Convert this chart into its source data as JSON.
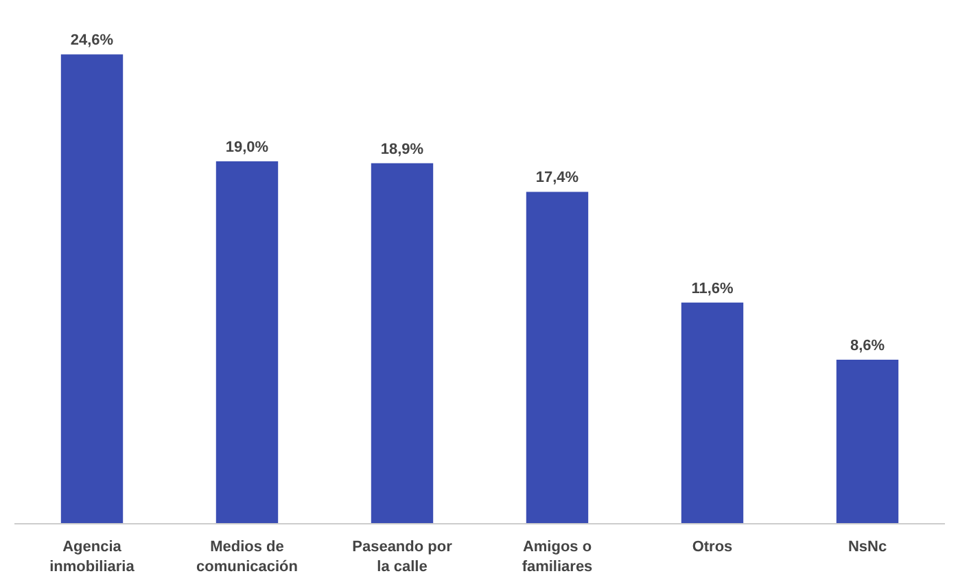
{
  "chart_data": {
    "type": "bar",
    "categories": [
      "Agencia inmobiliaria",
      "Medios de comunicación",
      "Paseando por la calle",
      "Amigos o familiares",
      "Otros",
      "NsNc"
    ],
    "values": [
      24.6,
      19.0,
      18.9,
      17.4,
      11.6,
      8.6
    ],
    "value_labels": [
      "24,6%",
      "19,0%",
      "18,9%",
      "17,4%",
      "11,6%",
      "8,6%"
    ],
    "color": "#3a4db3"
  }
}
